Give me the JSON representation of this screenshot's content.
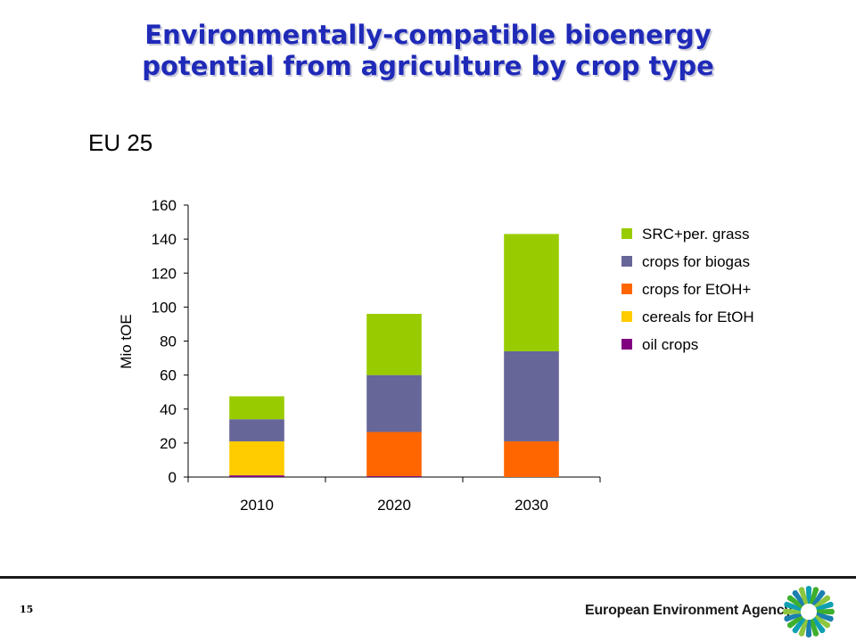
{
  "slide": {
    "title_line1": "Environmentally-compatible bioenergy",
    "title_line2": "potential from agriculture by crop type",
    "page_number": "15",
    "agency_name": "European Environment Agency"
  },
  "colors": {
    "title": "#1f2ab8",
    "SRC+per. grass": "#99cc00",
    "crops for biogas": "#666699",
    "crops for EtOH+": "#ff6600",
    "cereals for EtOH": "#ffcc00",
    "oil crops": "#800080"
  },
  "chart_data": {
    "type": "bar",
    "stacked": true,
    "title": "EU 25",
    "xlabel": "",
    "ylabel": "Mio tOE",
    "ylim": [
      0,
      160
    ],
    "yticks": [
      0,
      20,
      40,
      60,
      80,
      100,
      120,
      140,
      160
    ],
    "categories": [
      "2010",
      "2020",
      "2030"
    ],
    "legend_position": "right",
    "grid": false,
    "series": [
      {
        "name": "oil crops",
        "values": [
          1,
          0.5,
          0
        ],
        "color": "#800080"
      },
      {
        "name": "cereals for EtOH",
        "values": [
          20,
          0,
          0
        ],
        "color": "#ffcc00"
      },
      {
        "name": "crops for EtOH+",
        "values": [
          0,
          26,
          21
        ],
        "color": "#ff6600"
      },
      {
        "name": "crops for biogas",
        "values": [
          13,
          33.5,
          53
        ],
        "color": "#666699"
      },
      {
        "name": "SRC+per. grass",
        "values": [
          13.5,
          36,
          69
        ],
        "color": "#99cc00"
      }
    ],
    "legend_order": [
      "SRC+per. grass",
      "crops for biogas",
      "crops for EtOH+",
      "cereals for EtOH",
      "oil crops"
    ]
  }
}
